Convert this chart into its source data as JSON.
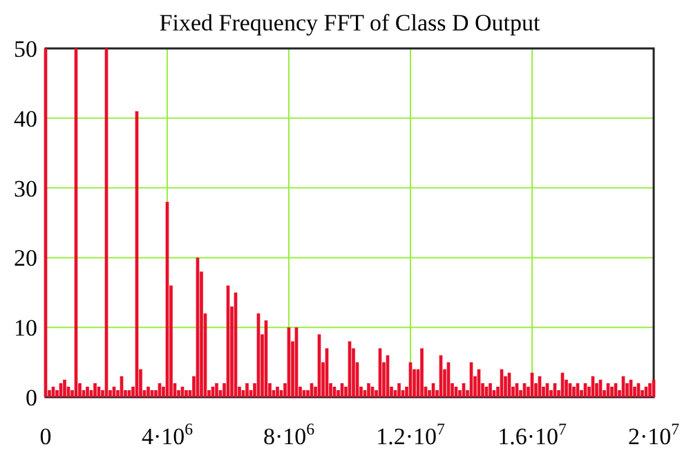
{
  "chart_data": {
    "type": "bar",
    "title": "Fixed Frequency FFT of Class D Output",
    "x": [
      0,
      125000,
      250000,
      375000,
      500000,
      625000,
      750000,
      875000,
      1000000,
      1125000,
      1250000,
      1375000,
      1500000,
      1625000,
      1750000,
      1875000,
      2000000,
      2125000,
      2250000,
      2375000,
      2500000,
      2625000,
      2750000,
      2875000,
      3000000,
      3125000,
      3250000,
      3375000,
      3500000,
      3625000,
      3750000,
      3875000,
      4000000,
      4125000,
      4250000,
      4375000,
      4500000,
      4625000,
      4750000,
      4875000,
      5000000,
      5125000,
      5250000,
      5375000,
      5500000,
      5625000,
      5750000,
      5875000,
      6000000,
      6125000,
      6250000,
      6375000,
      6500000,
      6625000,
      6750000,
      6875000,
      7000000,
      7125000,
      7250000,
      7375000,
      7500000,
      7625000,
      7750000,
      7875000,
      8000000,
      8125000,
      8250000,
      8375000,
      8500000,
      8625000,
      8750000,
      8875000,
      9000000,
      9125000,
      9250000,
      9375000,
      9500000,
      9625000,
      9750000,
      9875000,
      10000000,
      10125000,
      10250000,
      10375000,
      10500000,
      10625000,
      10750000,
      10875000,
      11000000,
      11125000,
      11250000,
      11375000,
      11500000,
      11625000,
      11750000,
      11875000,
      12000000,
      12125000,
      12250000,
      12375000,
      12500000,
      12625000,
      12750000,
      12875000,
      13000000,
      13125000,
      13250000,
      13375000,
      13500000,
      13625000,
      13750000,
      13875000,
      14000000,
      14125000,
      14250000,
      14375000,
      14500000,
      14625000,
      14750000,
      14875000,
      15000000,
      15125000,
      15250000,
      15375000,
      15500000,
      15625000,
      15750000,
      15875000,
      16000000,
      16125000,
      16250000,
      16375000,
      16500000,
      16625000,
      16750000,
      16875000,
      17000000,
      17125000,
      17250000,
      17375000,
      17500000,
      17625000,
      17750000,
      17875000,
      18000000,
      18125000,
      18250000,
      18375000,
      18500000,
      18625000,
      18750000,
      18875000,
      19000000,
      19125000,
      19250000,
      19375000,
      19500000,
      19625000,
      19750000,
      19875000,
      20000000
    ],
    "values": [
      50,
      1,
      1.5,
      1,
      2,
      2.5,
      1.5,
      1,
      50,
      2,
      1,
      1.5,
      1,
      2,
      1.5,
      1,
      50,
      1,
      1.5,
      1,
      3,
      1,
      1,
      1.5,
      41,
      4,
      1,
      1.5,
      1,
      1,
      2,
      1.5,
      28,
      16,
      2,
      1,
      1.5,
      1,
      1,
      3,
      20,
      18,
      12,
      1,
      1.5,
      2,
      1,
      2,
      16,
      13,
      15,
      1.5,
      1,
      2,
      1,
      2,
      12,
      9,
      11,
      2,
      1,
      1.5,
      1,
      2,
      10,
      8,
      10,
      1.5,
      1,
      1,
      2,
      1.5,
      9,
      5,
      7,
      2,
      1.5,
      1,
      2,
      1.5,
      8,
      7,
      5,
      1.5,
      1,
      2,
      1.5,
      1,
      7,
      5,
      6,
      1.5,
      1,
      2,
      1,
      1.5,
      5,
      4,
      4,
      7,
      1.5,
      1,
      2,
      1,
      6,
      4,
      5,
      2,
      1.5,
      1,
      2,
      1,
      5,
      3,
      4,
      2,
      1.5,
      2,
      1,
      1.5,
      4,
      3,
      3.5,
      1.5,
      2,
      1,
      2,
      1.5,
      3.5,
      2,
      3,
      1.5,
      2,
      1,
      2,
      1,
      3.5,
      2.5,
      2,
      1.5,
      2,
      1,
      2,
      1.5,
      3,
      2,
      2.5,
      1,
      2,
      1.5,
      2,
      1,
      3,
      2,
      2.5,
      1.5,
      2,
      1,
      1.5,
      2,
      2.5
    ],
    "color": "#e8102a",
    "xlim": [
      0,
      20000000
    ],
    "xticks": [
      0,
      {
        "value": 4000000,
        "label": "4·10$^{6}$"
      },
      {
        "value": 8000000,
        "label": "8·10$^{6}$"
      },
      {
        "value": 12000000,
        "label": "1.2·10$^{7}$"
      },
      {
        "value": 16000000,
        "label": "1.6·10$^{7}$"
      },
      {
        "value": 20000000,
        "label": "2·10$^{7}$"
      }
    ],
    "ylim": [
      0,
      50
    ],
    "yticks": [
      0,
      10,
      20,
      30,
      40,
      50
    ],
    "grid": true
  }
}
